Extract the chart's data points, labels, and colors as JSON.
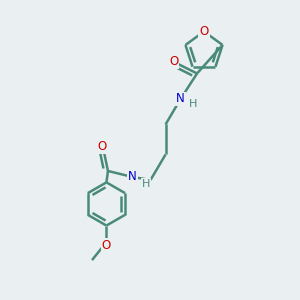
{
  "background_color": "#eaeff2",
  "bond_color": "#4a8a7a",
  "oxygen_color": "#cc0000",
  "nitrogen_color": "#0000cc",
  "hydrogen_color": "#4a8a7a",
  "line_width": 1.8,
  "figsize": [
    3.0,
    3.0
  ],
  "dpi": 100,
  "xlim": [
    0,
    10
  ],
  "ylim": [
    0,
    10
  ]
}
